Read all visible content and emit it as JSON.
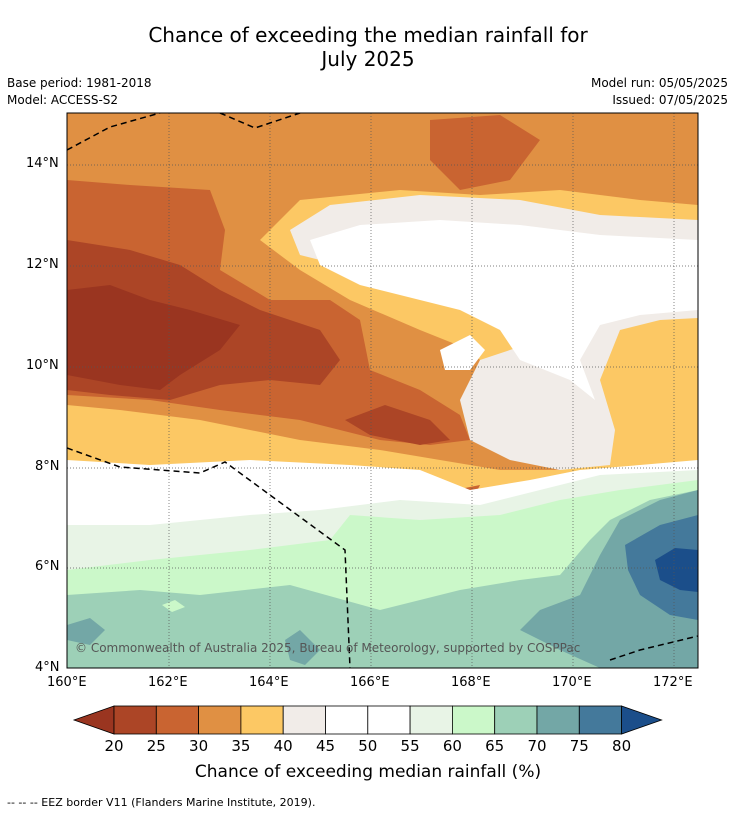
{
  "title": {
    "line1": "Chance of exceeding the median rainfall for",
    "line2": "July 2025"
  },
  "meta": {
    "base_period": "Base period: 1981-2018",
    "model": "Model: ACCESS-S2",
    "model_run": "Model run: 05/05/2025",
    "issued": "Issued: 07/05/2025"
  },
  "map": {
    "lat_ticks": [
      "14°N",
      "12°N",
      "10°N",
      "8°N",
      "6°N",
      "4°N"
    ],
    "lon_ticks": [
      "160°E",
      "162°E",
      "164°E",
      "166°E",
      "168°E",
      "170°E",
      "172°E"
    ],
    "copyright": "© Commonwealth of Australia 2025, Bureau of Meteorology, supported by COSPPac"
  },
  "colorbar": {
    "levels": [
      "20",
      "25",
      "30",
      "35",
      "40",
      "45",
      "50",
      "55",
      "60",
      "65",
      "70",
      "75",
      "80"
    ],
    "colors": [
      "#9a3520",
      "#ac4526",
      "#c96431",
      "#e09043",
      "#fcc864",
      "#f1ece8",
      "#ffffff",
      "#ffffff",
      "#e8f4e6",
      "#cbf8c9",
      "#9dd0b7",
      "#73a7a6",
      "#44799b",
      "#1b4e8a"
    ],
    "title": "Chance of exceeding median rainfall (%)"
  },
  "footnote": "--  --  -- EEZ border V11 (Flanders Marine Institute, 2019)."
}
